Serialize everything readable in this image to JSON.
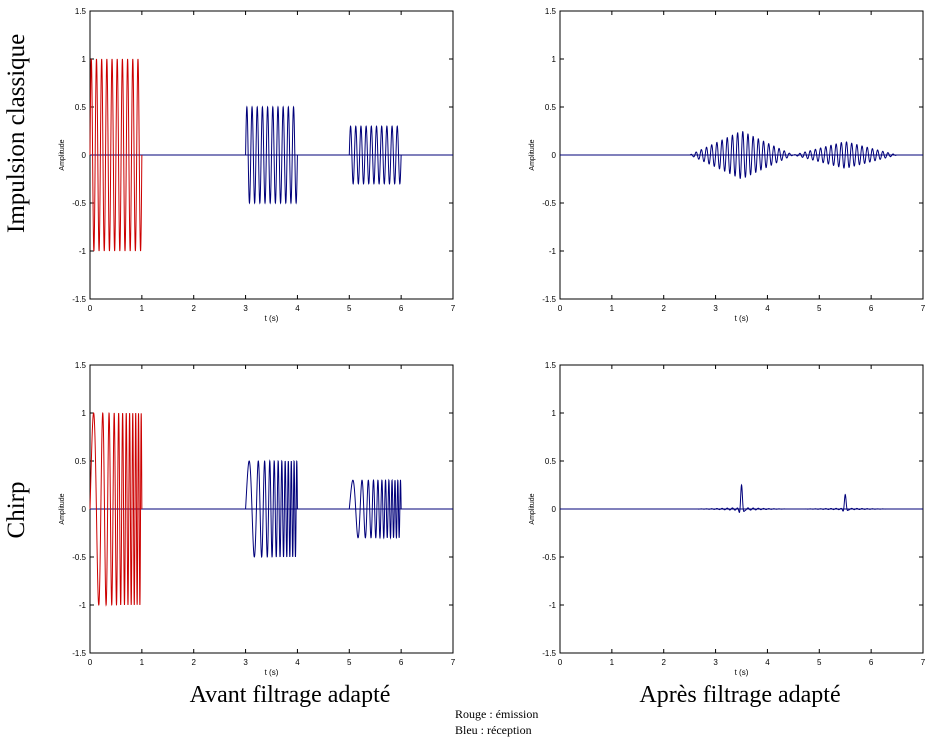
{
  "row_labels": [
    "Impulsion classique",
    "Chirp"
  ],
  "column_labels": [
    "Avant filtrage adapté",
    "Après filtrage adapté"
  ],
  "legend": {
    "emission": "Rouge : émission",
    "reception": "Bleu : réception"
  },
  "colors": {
    "emission": "#cc0000",
    "reception": "#00007a",
    "axis": "#000000"
  },
  "chart_data": [
    {
      "type": "line",
      "panel": "top-left",
      "title": "",
      "xlabel": "t (s)",
      "ylabel": "Amplitude",
      "xlim": [
        0,
        7
      ],
      "ylim": [
        -1.5,
        1.5
      ],
      "xticks": [
        0,
        1,
        2,
        3,
        4,
        5,
        6,
        7
      ],
      "yticks": [
        -1.5,
        -1,
        -0.5,
        0,
        0.5,
        1,
        1.5
      ],
      "grid": false,
      "series": [
        {
          "role": "emission",
          "kind": "burst",
          "t_start": 0.0,
          "t_end": 1.0,
          "amplitude": 1.0,
          "cycles": 10,
          "chirp": false
        },
        {
          "role": "reception",
          "kind": "burst",
          "t_start": 3.0,
          "t_end": 4.0,
          "amplitude": 0.5,
          "cycles": 10,
          "chirp": false
        },
        {
          "role": "reception",
          "kind": "burst",
          "t_start": 5.0,
          "t_end": 6.0,
          "amplitude": 0.3,
          "cycles": 10,
          "chirp": false
        }
      ]
    },
    {
      "type": "line",
      "panel": "top-right",
      "title": "",
      "xlabel": "t (s)",
      "ylabel": "Amplitude",
      "xlim": [
        0,
        7
      ],
      "ylim": [
        -1.5,
        1.5
      ],
      "xticks": [
        0,
        1,
        2,
        3,
        4,
        5,
        6,
        7
      ],
      "yticks": [
        -1.5,
        -1,
        -0.5,
        0,
        0.5,
        1,
        1.5
      ],
      "grid": false,
      "series": [
        {
          "role": "reception",
          "kind": "triangle",
          "t_start": 2.5,
          "t_end": 4.5,
          "amplitude": 0.25,
          "cycles": 20
        },
        {
          "role": "reception",
          "kind": "triangle",
          "t_start": 4.5,
          "t_end": 6.5,
          "amplitude": 0.14,
          "cycles": 20
        }
      ]
    },
    {
      "type": "line",
      "panel": "bottom-left",
      "title": "",
      "xlabel": "t (s)",
      "ylabel": "Amplitude",
      "xlim": [
        0,
        7
      ],
      "ylim": [
        -1.5,
        1.5
      ],
      "xticks": [
        0,
        1,
        2,
        3,
        4,
        5,
        6,
        7
      ],
      "yticks": [
        -1.5,
        -1,
        -0.5,
        0,
        0.5,
        1,
        1.5
      ],
      "grid": false,
      "series": [
        {
          "role": "emission",
          "kind": "burst",
          "t_start": 0.0,
          "t_end": 1.0,
          "amplitude": 1.0,
          "cycles": 10,
          "chirp": true
        },
        {
          "role": "reception",
          "kind": "burst",
          "t_start": 3.0,
          "t_end": 4.0,
          "amplitude": 0.5,
          "cycles": 10,
          "chirp": true
        },
        {
          "role": "reception",
          "kind": "burst",
          "t_start": 5.0,
          "t_end": 6.0,
          "amplitude": 0.3,
          "cycles": 10,
          "chirp": true
        }
      ]
    },
    {
      "type": "line",
      "panel": "bottom-right",
      "title": "",
      "xlabel": "t (s)",
      "ylabel": "Amplitude",
      "xlim": [
        0,
        7
      ],
      "ylim": [
        -1.5,
        1.5
      ],
      "xticks": [
        0,
        1,
        2,
        3,
        4,
        5,
        6,
        7
      ],
      "yticks": [
        -1.5,
        -1,
        -0.5,
        0,
        0.5,
        1,
        1.5
      ],
      "grid": false,
      "series": [
        {
          "role": "reception",
          "kind": "pulse",
          "t_start": 2.5,
          "t_end": 4.5,
          "t_peak": 3.5,
          "amplitude": 0.25
        },
        {
          "role": "reception",
          "kind": "pulse",
          "t_start": 4.5,
          "t_end": 6.5,
          "t_peak": 5.5,
          "amplitude": 0.15
        }
      ]
    }
  ]
}
